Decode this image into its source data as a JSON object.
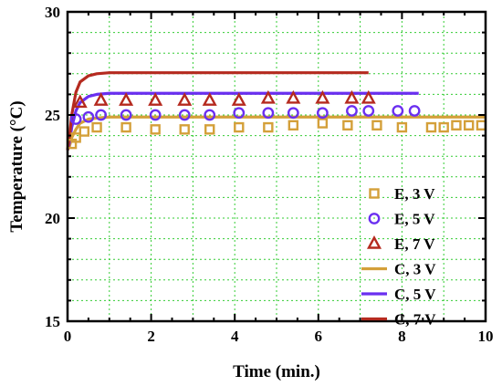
{
  "chart_data": {
    "type": "scatter",
    "xlabel": "Time (min.)",
    "ylabel": "Temperature (°C)",
    "xlim": [
      0,
      10
    ],
    "ylim": [
      15,
      30
    ],
    "xticks": [
      "0",
      "2",
      "4",
      "6",
      "8",
      "10"
    ],
    "yticks": [
      "15",
      "20",
      "25",
      "30"
    ],
    "grid": "on, dotted green",
    "legend_position": "bottom-right",
    "colors": {
      "3V": "#d4a03a",
      "5V": "#6a2ff0",
      "7V": "#b52a1f",
      "grid": "#33cc33"
    },
    "series": [
      {
        "name": "E, 3 V",
        "kind": "experiment",
        "marker": "square",
        "color": "#d4a03a",
        "x": [
          0.1,
          0.2,
          0.4,
          0.7,
          1.4,
          2.1,
          2.8,
          3.4,
          4.1,
          4.8,
          5.4,
          6.1,
          6.7,
          7.4,
          8.0,
          8.7,
          9.0,
          9.3,
          9.6,
          9.9
        ],
        "y": [
          23.6,
          23.9,
          24.2,
          24.4,
          24.4,
          24.3,
          24.3,
          24.3,
          24.4,
          24.4,
          24.5,
          24.6,
          24.5,
          24.5,
          24.4,
          24.4,
          24.4,
          24.5,
          24.5,
          24.5
        ]
      },
      {
        "name": "E, 5 V",
        "kind": "experiment",
        "marker": "circle",
        "color": "#6a2ff0",
        "x": [
          0.2,
          0.5,
          0.8,
          1.4,
          2.1,
          2.8,
          3.4,
          4.1,
          4.8,
          5.4,
          6.1,
          6.8,
          7.2,
          7.9,
          8.3
        ],
        "y": [
          24.8,
          24.9,
          25.0,
          25.0,
          25.0,
          25.0,
          25.0,
          25.1,
          25.1,
          25.1,
          25.1,
          25.2,
          25.2,
          25.2,
          25.2
        ]
      },
      {
        "name": "E, 7 V",
        "kind": "experiment",
        "marker": "triangle",
        "color": "#b52a1f",
        "x": [
          0.3,
          0.8,
          1.4,
          2.1,
          2.8,
          3.4,
          4.1,
          4.8,
          5.4,
          6.1,
          6.8,
          7.2
        ],
        "y": [
          25.6,
          25.7,
          25.7,
          25.7,
          25.7,
          25.7,
          25.7,
          25.8,
          25.8,
          25.8,
          25.8,
          25.8
        ]
      },
      {
        "name": "C, 3 V",
        "kind": "calculation",
        "color": "#d4a03a",
        "x": [
          0,
          0.05,
          0.1,
          0.2,
          0.3,
          0.5,
          0.7,
          1.0,
          2.0,
          4.0,
          6.0,
          8.0,
          10.0
        ],
        "y": [
          23.3,
          23.5,
          23.9,
          24.3,
          24.6,
          24.8,
          24.85,
          24.9,
          24.9,
          24.9,
          24.9,
          24.9,
          24.9
        ]
      },
      {
        "name": "C, 5 V",
        "kind": "calculation",
        "color": "#6a2ff0",
        "x": [
          0,
          0.05,
          0.1,
          0.2,
          0.3,
          0.5,
          0.7,
          1.0,
          2.0,
          4.0,
          6.0,
          8.4
        ],
        "y": [
          23.3,
          23.7,
          24.4,
          25.2,
          25.6,
          25.9,
          26.0,
          26.05,
          26.05,
          26.05,
          26.05,
          26.05
        ]
      },
      {
        "name": "C, 7 V",
        "kind": "calculation",
        "color": "#b52a1f",
        "x": [
          0,
          0.05,
          0.1,
          0.2,
          0.3,
          0.5,
          0.7,
          1.0,
          2.0,
          4.0,
          6.0,
          7.2
        ],
        "y": [
          23.3,
          24.0,
          25.0,
          26.1,
          26.6,
          26.9,
          27.0,
          27.05,
          27.05,
          27.05,
          27.05,
          27.05
        ]
      }
    ]
  }
}
